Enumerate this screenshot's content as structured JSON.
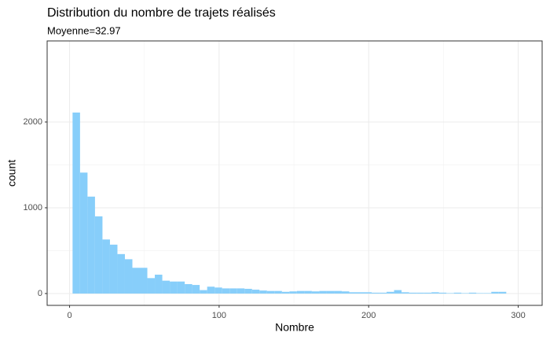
{
  "chart_data": {
    "type": "histogram",
    "title": "Distribution du nombre de trajets réalisés",
    "subtitle": "Moyenne=32.97",
    "x_label": "Nombre",
    "y_label": "count",
    "bins": [
      2,
      7,
      12,
      17,
      22,
      27,
      32,
      37,
      42,
      47,
      52,
      57,
      62,
      67,
      72,
      77,
      82,
      87,
      92,
      97,
      102,
      107,
      112,
      117,
      122,
      127,
      132,
      137,
      142,
      147,
      152,
      157,
      162,
      167,
      172,
      177,
      182,
      187,
      192,
      197,
      202,
      207,
      212,
      217,
      222,
      227,
      232,
      237,
      242,
      247,
      252,
      257,
      262,
      267,
      272,
      277,
      282,
      287,
      292
    ],
    "values": [
      2110,
      1410,
      1130,
      900,
      630,
      570,
      460,
      400,
      300,
      300,
      180,
      220,
      150,
      140,
      140,
      110,
      100,
      40,
      80,
      70,
      60,
      60,
      60,
      55,
      45,
      35,
      30,
      30,
      20,
      25,
      30,
      30,
      25,
      30,
      30,
      30,
      25,
      15,
      15,
      15,
      10,
      10,
      20,
      40,
      15,
      10,
      10,
      10,
      15,
      10,
      5,
      10,
      5,
      10,
      5,
      5,
      20,
      20
    ],
    "color": "#87cefa",
    "xlim": [
      -15,
      316
    ],
    "ylim": [
      -138,
      2945
    ],
    "xticks": [
      0,
      100,
      200,
      300
    ],
    "yticks": [
      0,
      1000,
      2000
    ],
    "grid": true
  }
}
